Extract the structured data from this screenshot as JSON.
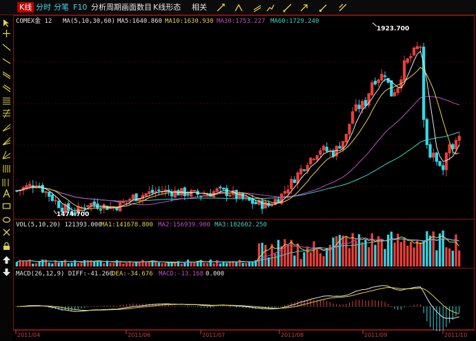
{
  "toolbar": {
    "tabs": [
      "K线",
      "分时",
      "分笔",
      "F10",
      "分析周期",
      "画面数目",
      "K线形态",
      "相关"
    ],
    "active_tab": "K线"
  },
  "main_panel": {
    "symbol": "COMEX金 12",
    "ma_params": "MA(5,10,30,60)",
    "ma5": "MA5:1640.860",
    "ma10": "MA10:1630.930",
    "ma30": "MA30:1753.227",
    "ma60": "MA60:1729.240",
    "high_mark": "1923.700",
    "low_mark": "1474.700"
  },
  "volume_panel": {
    "params": "VOL(5,10,20) 121393.000",
    "ma1": "MA1:141678.800",
    "ma2": "MA2:156939.900",
    "ma3": "MA3:182602.250"
  },
  "macd_panel": {
    "params": "MACD(26,12,9) DIFF:-41.260",
    "dea": "DEA:-34.676",
    "macd": "MACD:-13.168",
    "zero": "0.000"
  },
  "time_axis": [
    "2011/04",
    "2011/06",
    "2011/07",
    "2011/08",
    "2011/09",
    "2011/10"
  ],
  "colors": {
    "up": "#e8403a",
    "down": "#36d6e6",
    "ma5": "#e8e8e8",
    "ma10": "#e6d24a",
    "ma30": "#c24ec8",
    "ma60": "#3bd6c8",
    "border": "#8a1414",
    "background": "#000000"
  },
  "chart_data": {
    "type": "candlestick",
    "x_range": [
      "2011/04",
      "2011/10"
    ],
    "y_range": [
      1474.7,
      1923.7
    ],
    "series": [
      {
        "name": "MA5",
        "last": 1640.86
      },
      {
        "name": "MA10",
        "last": 1630.93
      },
      {
        "name": "MA30",
        "last": 1753.227
      },
      {
        "name": "MA60",
        "last": 1729.24
      }
    ],
    "annotations": {
      "high": 1923.7,
      "low": 1474.7
    }
  }
}
